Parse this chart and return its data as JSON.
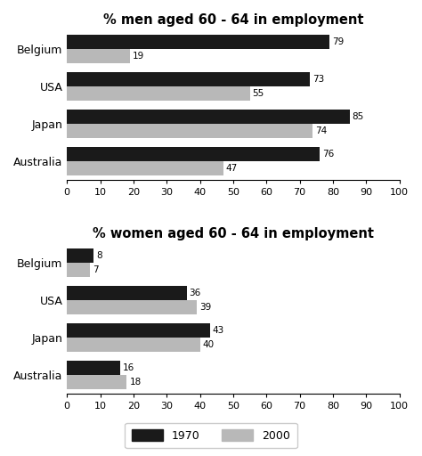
{
  "men_title": "% men aged 60 - 64 in employment",
  "women_title": "% women aged 60 - 64 in employment",
  "countries": [
    "Belgium",
    "USA",
    "Japan",
    "Australia"
  ],
  "men_1970": [
    79,
    73,
    85,
    76
  ],
  "men_2000": [
    19,
    55,
    74,
    47
  ],
  "women_1970": [
    8,
    36,
    43,
    16
  ],
  "women_2000": [
    7,
    39,
    40,
    18
  ],
  "color_1970": "#1a1a1a",
  "color_2000": "#b8b8b8",
  "xlim": [
    0,
    100
  ],
  "xticks": [
    0,
    10,
    20,
    30,
    40,
    50,
    60,
    70,
    80,
    90,
    100
  ],
  "bar_height": 0.38,
  "legend_label_1970": "1970",
  "legend_label_2000": "2000",
  "title_fontsize": 10.5,
  "label_fontsize": 9,
  "tick_fontsize": 8,
  "value_fontsize": 7.5
}
